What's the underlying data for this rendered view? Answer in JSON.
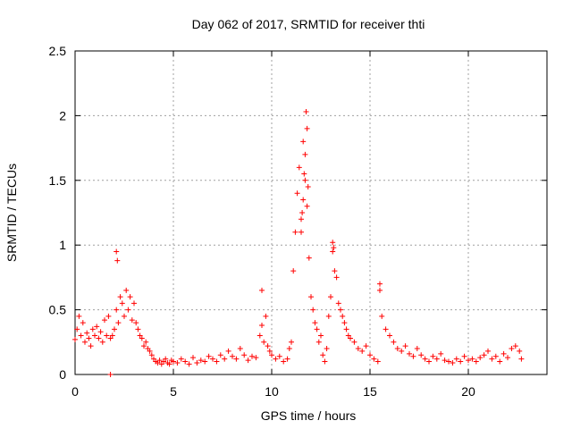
{
  "chart_data": {
    "type": "scatter",
    "title": "Day 062 of 2017, SRMTID for receiver thti",
    "xlabel": "GPS time / hours",
    "ylabel": "SRMTID / TECUs",
    "xlim": [
      0,
      24
    ],
    "ylim": [
      0,
      2.5
    ],
    "xticks": [
      0,
      5,
      10,
      15,
      20
    ],
    "yticks": [
      0,
      0.5,
      1,
      1.5,
      2,
      2.5
    ],
    "xtick_labels": [
      "0",
      "5",
      "10",
      "15",
      "20"
    ],
    "ytick_labels": [
      "0",
      "0.5",
      "1",
      "1.5",
      "2",
      "2.5"
    ],
    "grid": true,
    "series": [
      {
        "name": "SRMTID",
        "color": "#ff0000",
        "marker": "plus",
        "x": [
          0.0,
          0.1,
          0.2,
          0.3,
          0.4,
          0.5,
          0.6,
          0.7,
          0.8,
          0.9,
          1.0,
          1.1,
          1.2,
          1.3,
          1.4,
          1.5,
          1.6,
          1.7,
          1.8,
          1.9,
          2.0,
          2.1,
          2.2,
          2.3,
          2.4,
          2.5,
          2.6,
          2.7,
          2.8,
          2.9,
          3.0,
          3.1,
          3.2,
          3.3,
          3.4,
          3.5,
          3.6,
          3.7,
          3.8,
          3.9,
          4.0,
          4.1,
          4.2,
          4.3,
          4.4,
          4.5,
          4.6,
          4.7,
          4.8,
          4.9,
          5.0,
          5.2,
          5.4,
          5.6,
          5.8,
          6.0,
          6.2,
          6.4,
          6.6,
          6.8,
          7.0,
          7.2,
          7.4,
          7.6,
          7.8,
          8.0,
          8.2,
          8.4,
          8.6,
          8.8,
          9.0,
          9.2,
          9.4,
          9.5,
          9.6,
          9.7,
          9.8,
          9.9,
          10.0,
          10.2,
          10.4,
          10.6,
          10.8,
          10.9,
          11.0,
          11.1,
          11.2,
          11.3,
          11.4,
          11.5,
          11.6,
          11.7,
          11.8,
          11.9,
          12.0,
          12.1,
          12.2,
          12.3,
          12.4,
          12.5,
          12.6,
          12.7,
          12.8,
          12.9,
          13.0,
          13.1,
          13.2,
          13.3,
          13.4,
          13.5,
          13.6,
          13.7,
          13.8,
          13.9,
          14.0,
          14.2,
          14.4,
          14.6,
          14.8,
          15.0,
          15.2,
          15.4,
          15.5,
          15.6,
          15.8,
          16.0,
          16.2,
          16.4,
          16.6,
          16.8,
          17.0,
          17.2,
          17.4,
          17.6,
          17.8,
          18.0,
          18.2,
          18.4,
          18.6,
          18.8,
          19.0,
          19.2,
          19.4,
          19.6,
          19.8,
          20.0,
          20.2,
          20.4,
          20.6,
          20.8,
          21.0,
          21.2,
          21.4,
          21.6,
          21.8,
          22.0,
          22.2,
          22.4,
          22.6,
          22.7,
          1.8,
          11.75,
          11.8,
          11.7,
          11.65,
          11.85,
          11.6,
          11.55,
          11.5,
          13.1,
          13.15,
          9.5,
          2.1,
          2.15,
          15.5
        ],
        "y": [
          0.27,
          0.35,
          0.45,
          0.3,
          0.4,
          0.25,
          0.32,
          0.28,
          0.22,
          0.35,
          0.3,
          0.37,
          0.28,
          0.33,
          0.25,
          0.42,
          0.3,
          0.45,
          0.28,
          0.3,
          0.35,
          0.5,
          0.4,
          0.6,
          0.55,
          0.45,
          0.65,
          0.5,
          0.6,
          0.42,
          0.55,
          0.4,
          0.35,
          0.3,
          0.28,
          0.22,
          0.25,
          0.2,
          0.18,
          0.15,
          0.12,
          0.1,
          0.09,
          0.11,
          0.08,
          0.1,
          0.12,
          0.09,
          0.08,
          0.11,
          0.1,
          0.09,
          0.12,
          0.1,
          0.08,
          0.13,
          0.09,
          0.11,
          0.1,
          0.14,
          0.12,
          0.1,
          0.15,
          0.12,
          0.18,
          0.14,
          0.12,
          0.2,
          0.15,
          0.11,
          0.14,
          0.13,
          0.3,
          0.38,
          0.25,
          0.45,
          0.22,
          0.18,
          0.15,
          0.12,
          0.14,
          0.1,
          0.12,
          0.2,
          0.25,
          0.8,
          1.1,
          1.4,
          1.6,
          1.2,
          1.8,
          1.5,
          1.3,
          0.9,
          0.6,
          0.5,
          0.4,
          0.35,
          0.25,
          0.3,
          0.15,
          0.1,
          0.2,
          0.45,
          0.6,
          0.95,
          0.8,
          0.75,
          0.55,
          0.5,
          0.45,
          0.4,
          0.35,
          0.3,
          0.28,
          0.25,
          0.2,
          0.18,
          0.22,
          0.15,
          0.12,
          0.1,
          0.65,
          0.45,
          0.35,
          0.3,
          0.25,
          0.2,
          0.18,
          0.22,
          0.16,
          0.14,
          0.2,
          0.15,
          0.12,
          0.1,
          0.14,
          0.12,
          0.16,
          0.11,
          0.1,
          0.09,
          0.12,
          0.1,
          0.14,
          0.11,
          0.12,
          0.1,
          0.13,
          0.15,
          0.18,
          0.12,
          0.14,
          0.1,
          0.16,
          0.13,
          0.2,
          0.22,
          0.18,
          0.12,
          0.0,
          2.03,
          1.9,
          1.7,
          1.55,
          1.45,
          1.35,
          1.25,
          1.1,
          1.02,
          0.98,
          0.65,
          0.95,
          0.88,
          0.7
        ]
      }
    ]
  }
}
